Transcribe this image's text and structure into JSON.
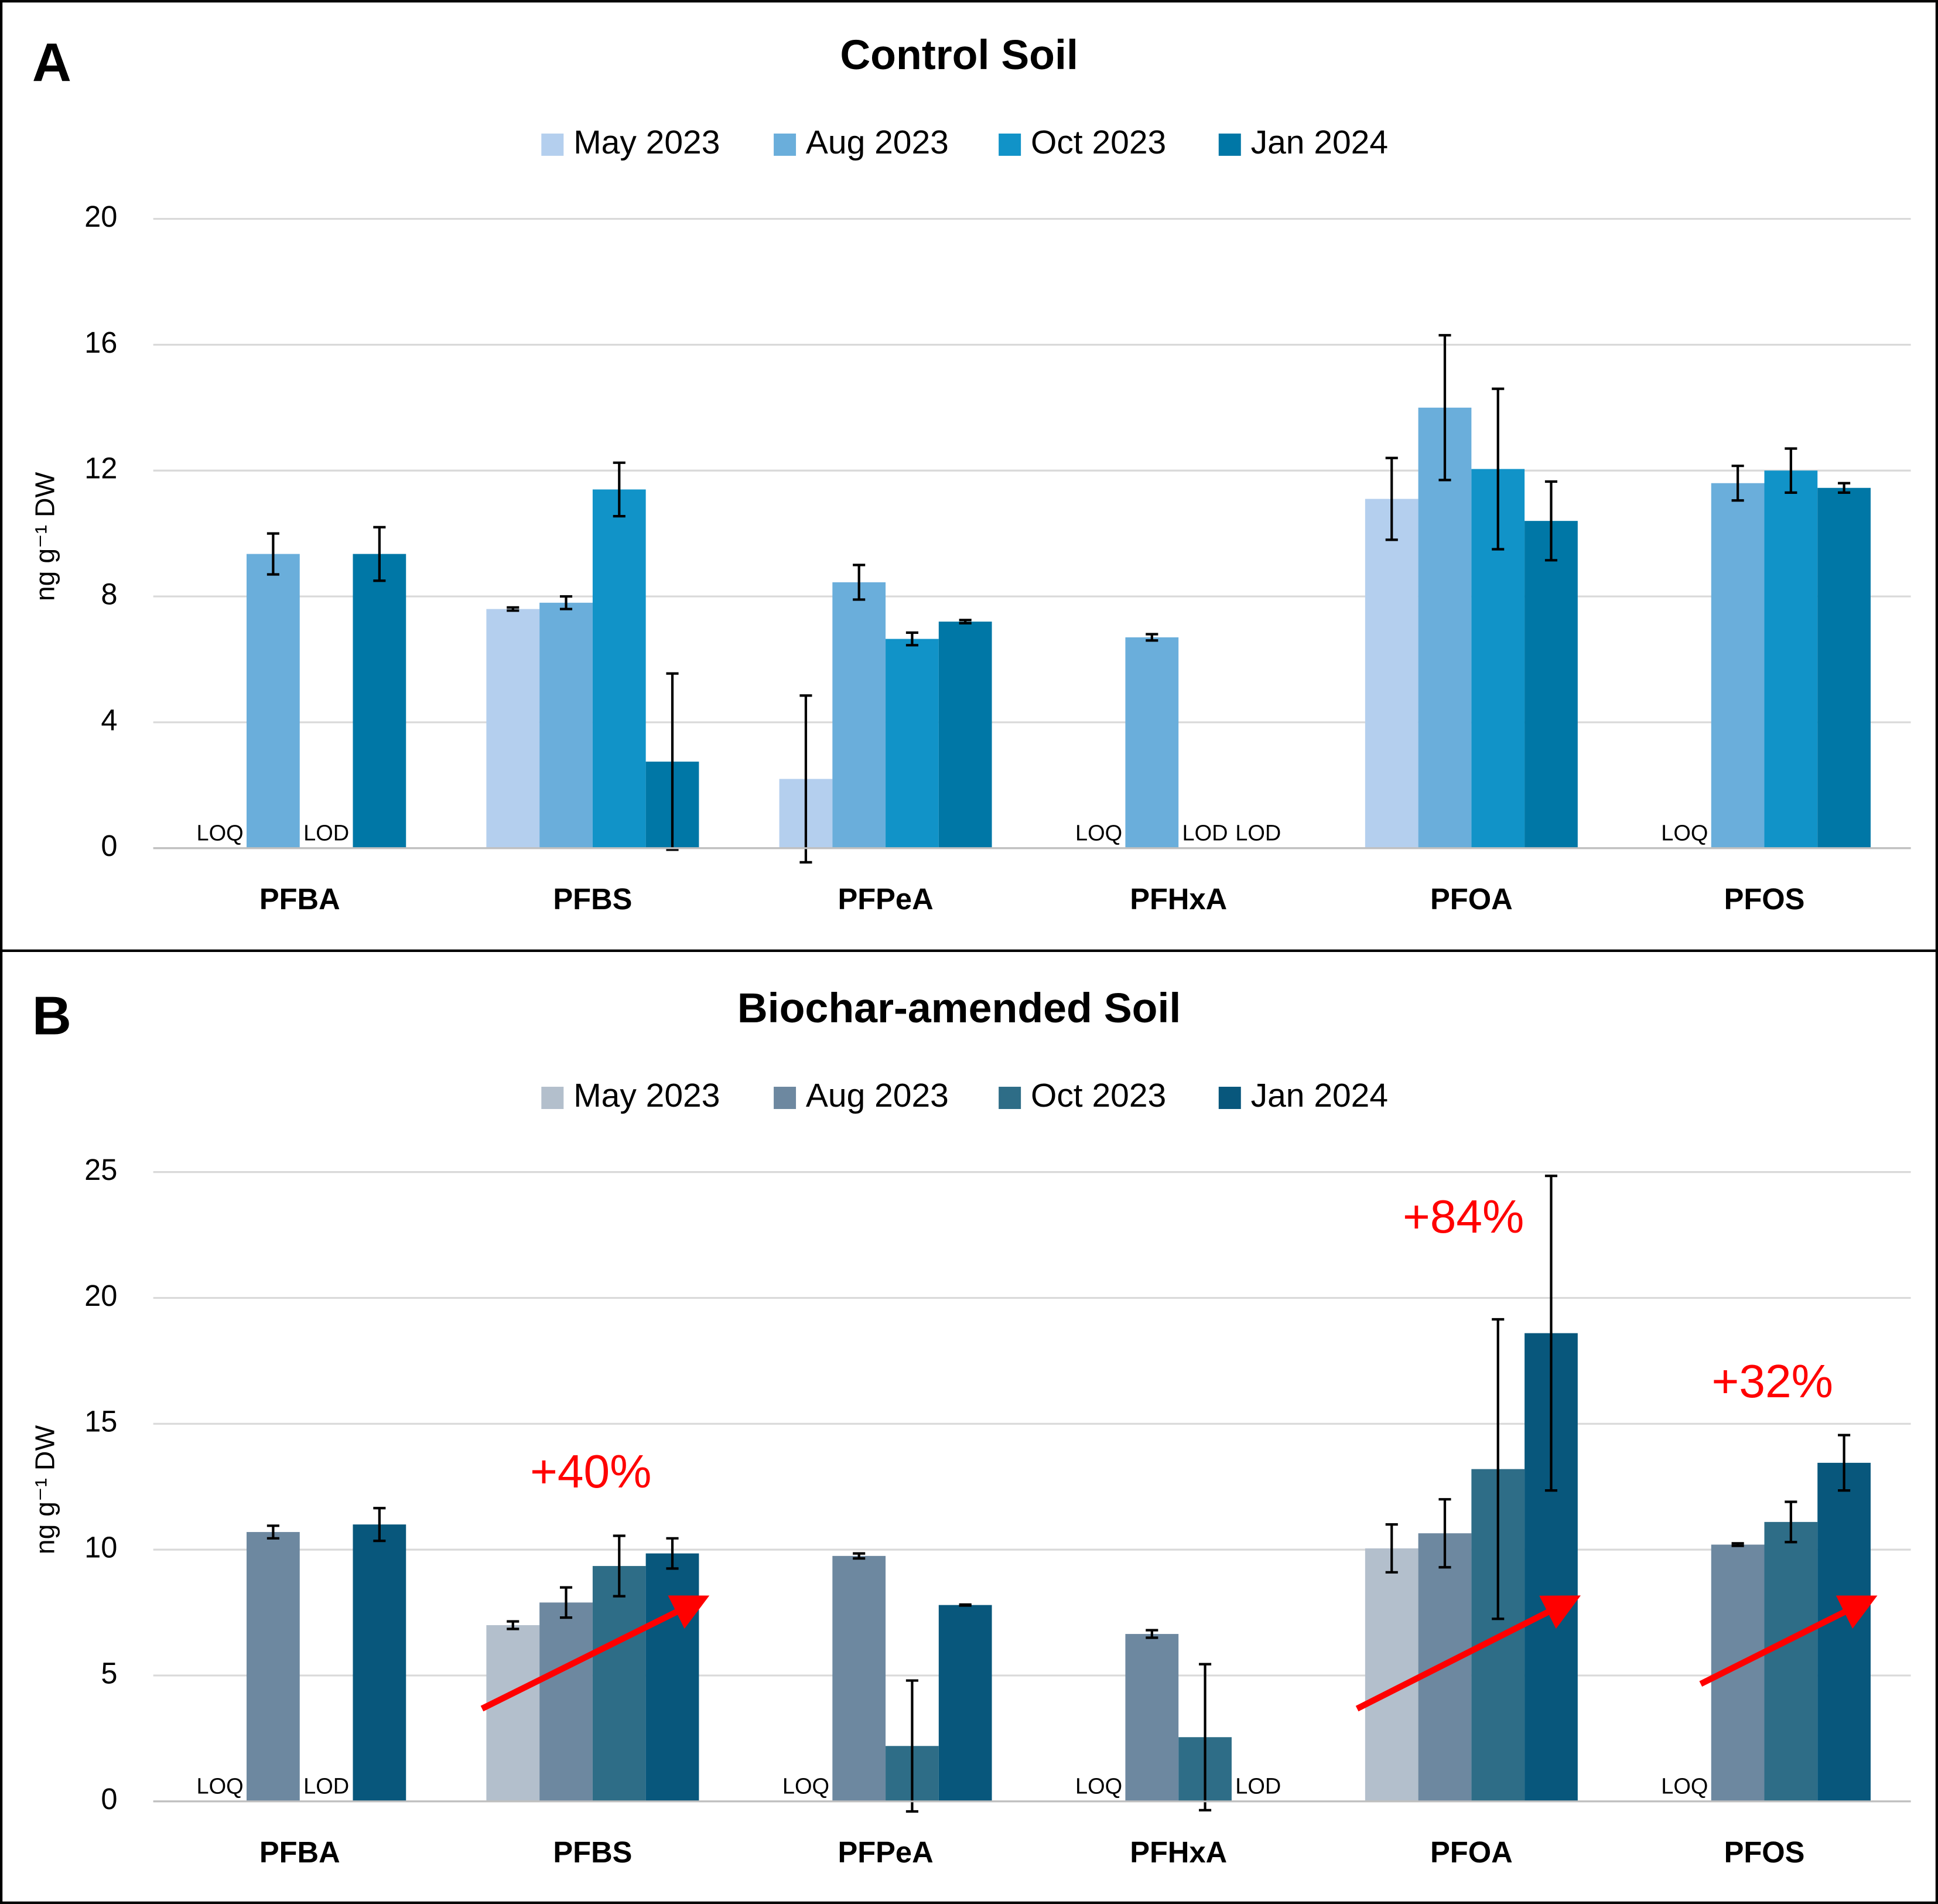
{
  "chart_data": [
    {
      "type": "bar",
      "panel": "A",
      "title": "Control Soil",
      "y_label": "ng g⁻¹ DW",
      "categories": [
        "PFBA",
        "PFBS",
        "PFPeA",
        "PFHxA",
        "PFOA",
        "PFOS"
      ],
      "ylim": [
        0,
        20
      ],
      "yticks": [
        0,
        4,
        8,
        12,
        16,
        20
      ],
      "grid": true,
      "legend": "top",
      "series": [
        {
          "name": "May 2023",
          "color": "#b4cfee",
          "values": [
            null,
            7.6,
            2.2,
            null,
            11.1,
            null
          ],
          "errors": [
            null,
            0.05,
            2.65,
            null,
            1.3,
            null
          ],
          "limit_labels": [
            "LOQ",
            null,
            null,
            "LOQ",
            null,
            "LOQ"
          ]
        },
        {
          "name": "Aug 2023",
          "color": "#6aaedb",
          "values": [
            9.35,
            7.8,
            8.45,
            6.7,
            14.0,
            11.6
          ],
          "errors": [
            0.65,
            0.2,
            0.55,
            0.1,
            2.3,
            0.55
          ],
          "limit_labels": [
            null,
            null,
            null,
            null,
            null,
            null
          ]
        },
        {
          "name": "Oct 2023",
          "color": "#1193c8",
          "values": [
            null,
            11.4,
            6.65,
            null,
            12.05,
            12.0
          ],
          "errors": [
            null,
            0.85,
            0.2,
            null,
            2.55,
            0.7
          ],
          "limit_labels": [
            "LOD",
            null,
            null,
            "LOD",
            null,
            null
          ]
        },
        {
          "name": "Jan 2024",
          "color": "#0077a6",
          "values": [
            9.35,
            2.75,
            7.2,
            null,
            10.4,
            11.45
          ],
          "errors": [
            0.85,
            2.8,
            0.05,
            null,
            1.25,
            0.15
          ],
          "limit_labels": [
            null,
            null,
            null,
            "LOD",
            null,
            null
          ]
        }
      ]
    },
    {
      "type": "bar",
      "panel": "B",
      "title": "Biochar-amended Soil",
      "y_label": "ng g⁻¹ DW",
      "categories": [
        "PFBA",
        "PFBS",
        "PFPeA",
        "PFHxA",
        "PFOA",
        "PFOS"
      ],
      "ylim": [
        0,
        25
      ],
      "yticks": [
        0,
        5,
        10,
        15,
        20,
        25
      ],
      "grid": true,
      "legend": "top",
      "annotations": [
        "+40%",
        "+84%",
        "+32%"
      ],
      "annotation_color": "#ff0000",
      "series": [
        {
          "name": "May 2023",
          "color": "#b3bfcc",
          "values": [
            null,
            7.0,
            null,
            null,
            10.05,
            null
          ],
          "errors": [
            null,
            0.15,
            null,
            null,
            0.95,
            null
          ],
          "limit_labels": [
            "LOQ",
            null,
            "LOQ",
            "LOQ",
            null,
            "LOQ"
          ]
        },
        {
          "name": "Aug 2023",
          "color": "#6d88a0",
          "values": [
            10.7,
            7.9,
            9.75,
            6.65,
            10.65,
            10.2
          ],
          "errors": [
            0.25,
            0.6,
            0.1,
            0.15,
            1.35,
            0.05
          ],
          "limit_labels": [
            null,
            null,
            null,
            null,
            null,
            null
          ]
        },
        {
          "name": "Oct 2023",
          "color": "#2e6d87",
          "values": [
            null,
            9.35,
            2.2,
            2.55,
            13.2,
            11.1
          ],
          "errors": [
            null,
            1.2,
            2.6,
            2.9,
            5.95,
            0.8
          ],
          "limit_labels": [
            "LOD",
            null,
            null,
            null,
            null,
            null
          ]
        },
        {
          "name": "Jan 2024",
          "color": "#08577c",
          "values": [
            11.0,
            9.85,
            7.8,
            null,
            18.6,
            13.45
          ],
          "errors": [
            0.65,
            0.6,
            0.02,
            null,
            6.25,
            1.1
          ],
          "limit_labels": [
            null,
            null,
            null,
            "LOD",
            null,
            null
          ]
        }
      ]
    }
  ]
}
